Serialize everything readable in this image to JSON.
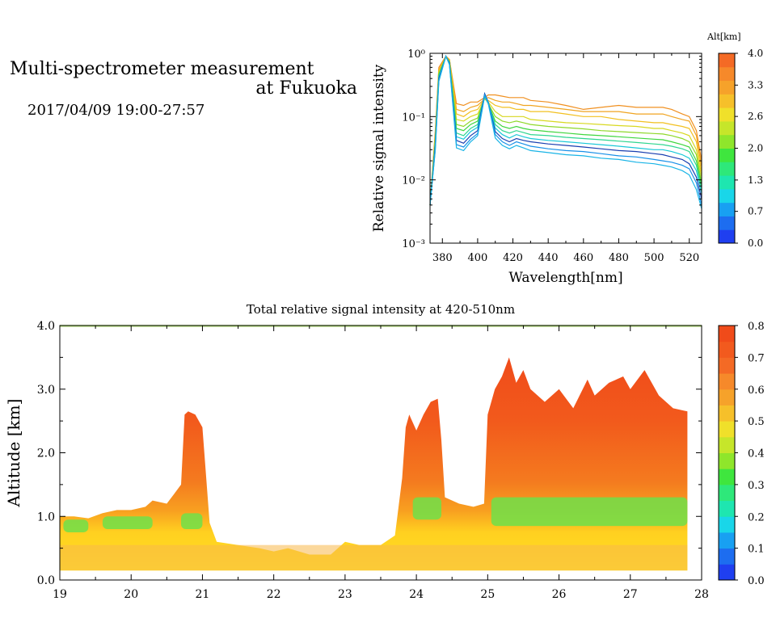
{
  "header": {
    "title_line1": "Multi-spectrometer measurement",
    "title_line2": "at Fukuoka",
    "date_range": "2017/04/09 19:00-27:57"
  },
  "chart_data": [
    {
      "type": "line",
      "xlabel": "Wavelength[nm]",
      "ylabel": "Relative signal intensity",
      "xlim": [
        373,
        527
      ],
      "ylim": [
        0.001,
        1
      ],
      "yscale": "log",
      "x_ticks": [
        380,
        400,
        420,
        440,
        460,
        480,
        500,
        520
      ],
      "y_tick_labels": [
        "10⁻³",
        "10⁻²",
        "10⁻¹",
        "10⁰"
      ],
      "y_tick_values": [
        0.001,
        0.01,
        0.1,
        1
      ],
      "colorbar": {
        "label": "Alt[km]",
        "range": [
          0,
          4
        ],
        "tick_labels": [
          "0.0",
          "0.7",
          "1.3",
          "2.0",
          "2.6",
          "3.3",
          "4.0"
        ],
        "tick_values": [
          0,
          0.67,
          1.33,
          2.0,
          2.67,
          3.33,
          4.0
        ],
        "colors": [
          "#1f3ff0",
          "#1d6df0",
          "#18a0f2",
          "#19d6e9",
          "#1ee6b0",
          "#2ee87a",
          "#3fe63e",
          "#8fe62b",
          "#c6e62a",
          "#f0e02a",
          "#f6c02a",
          "#f6a22a",
          "#f6892a",
          "#f46a25"
        ]
      },
      "x": [
        373,
        376,
        378,
        382,
        384,
        388,
        392,
        396,
        400,
        404,
        406,
        410,
        414,
        418,
        422,
        426,
        430,
        440,
        450,
        460,
        470,
        480,
        490,
        500,
        505,
        510,
        516,
        520,
        524,
        527
      ],
      "series": [
        {
          "color": "#f09020",
          "values": [
            0.004,
            0.06,
            0.6,
            0.9,
            0.8,
            0.16,
            0.15,
            0.17,
            0.17,
            0.2,
            0.22,
            0.22,
            0.21,
            0.2,
            0.2,
            0.2,
            0.18,
            0.17,
            0.15,
            0.13,
            0.14,
            0.15,
            0.14,
            0.14,
            0.14,
            0.13,
            0.11,
            0.1,
            0.06,
            0.02
          ]
        },
        {
          "color": "#f0a420",
          "values": [
            0.004,
            0.05,
            0.55,
            0.88,
            0.8,
            0.13,
            0.12,
            0.14,
            0.15,
            0.19,
            0.2,
            0.18,
            0.17,
            0.17,
            0.16,
            0.15,
            0.15,
            0.14,
            0.13,
            0.12,
            0.12,
            0.12,
            0.11,
            0.11,
            0.11,
            0.1,
            0.09,
            0.085,
            0.05,
            0.016
          ]
        },
        {
          "color": "#f2c020",
          "values": [
            0.004,
            0.05,
            0.52,
            0.88,
            0.78,
            0.11,
            0.1,
            0.12,
            0.13,
            0.19,
            0.18,
            0.15,
            0.14,
            0.14,
            0.13,
            0.13,
            0.12,
            0.12,
            0.11,
            0.1,
            0.1,
            0.09,
            0.085,
            0.08,
            0.08,
            0.075,
            0.07,
            0.065,
            0.04,
            0.013
          ]
        },
        {
          "color": "#d8d820",
          "values": [
            0.004,
            0.045,
            0.5,
            0.88,
            0.75,
            0.09,
            0.085,
            0.1,
            0.11,
            0.19,
            0.17,
            0.12,
            0.1,
            0.1,
            0.1,
            0.1,
            0.09,
            0.085,
            0.08,
            0.078,
            0.075,
            0.072,
            0.07,
            0.065,
            0.065,
            0.06,
            0.055,
            0.05,
            0.03,
            0.011
          ]
        },
        {
          "color": "#8fd82a",
          "values": [
            0.004,
            0.045,
            0.48,
            0.88,
            0.75,
            0.075,
            0.07,
            0.085,
            0.095,
            0.2,
            0.16,
            0.1,
            0.085,
            0.08,
            0.085,
            0.08,
            0.075,
            0.07,
            0.067,
            0.064,
            0.06,
            0.058,
            0.056,
            0.054,
            0.053,
            0.05,
            0.045,
            0.04,
            0.025,
            0.009
          ]
        },
        {
          "color": "#3fd63e",
          "values": [
            0.004,
            0.04,
            0.46,
            0.88,
            0.73,
            0.065,
            0.06,
            0.075,
            0.085,
            0.21,
            0.16,
            0.085,
            0.07,
            0.065,
            0.07,
            0.065,
            0.062,
            0.058,
            0.055,
            0.052,
            0.05,
            0.048,
            0.046,
            0.044,
            0.043,
            0.04,
            0.036,
            0.033,
            0.02,
            0.008
          ]
        },
        {
          "color": "#2ed690",
          "values": [
            0.004,
            0.04,
            0.44,
            0.88,
            0.72,
            0.055,
            0.05,
            0.065,
            0.075,
            0.22,
            0.16,
            0.075,
            0.06,
            0.055,
            0.06,
            0.056,
            0.052,
            0.05,
            0.047,
            0.045,
            0.043,
            0.041,
            0.039,
            0.037,
            0.036,
            0.034,
            0.031,
            0.028,
            0.017,
            0.007
          ]
        },
        {
          "color": "#19c8d8",
          "values": [
            0.004,
            0.035,
            0.42,
            0.88,
            0.7,
            0.048,
            0.044,
            0.058,
            0.068,
            0.23,
            0.17,
            0.066,
            0.052,
            0.046,
            0.052,
            0.048,
            0.045,
            0.042,
            0.04,
            0.038,
            0.036,
            0.034,
            0.032,
            0.03,
            0.03,
            0.028,
            0.025,
            0.022,
            0.014,
            0.006
          ]
        },
        {
          "color": "#1a3fb0",
          "values": [
            0.004,
            0.035,
            0.4,
            0.9,
            0.7,
            0.042,
            0.038,
            0.05,
            0.06,
            0.23,
            0.17,
            0.058,
            0.045,
            0.04,
            0.045,
            0.042,
            0.04,
            0.037,
            0.035,
            0.033,
            0.031,
            0.029,
            0.028,
            0.026,
            0.025,
            0.023,
            0.021,
            0.018,
            0.011,
            0.005
          ]
        },
        {
          "color": "#1890e8",
          "values": [
            0.004,
            0.03,
            0.38,
            0.9,
            0.68,
            0.036,
            0.033,
            0.044,
            0.054,
            0.22,
            0.17,
            0.052,
            0.04,
            0.035,
            0.04,
            0.037,
            0.034,
            0.031,
            0.029,
            0.028,
            0.026,
            0.024,
            0.023,
            0.021,
            0.02,
            0.019,
            0.017,
            0.015,
            0.009,
            0.004
          ]
        },
        {
          "color": "#19b4e6",
          "values": [
            0.004,
            0.03,
            0.36,
            0.9,
            0.66,
            0.032,
            0.029,
            0.04,
            0.05,
            0.21,
            0.16,
            0.046,
            0.035,
            0.031,
            0.035,
            0.032,
            0.029,
            0.027,
            0.025,
            0.024,
            0.022,
            0.021,
            0.019,
            0.018,
            0.017,
            0.016,
            0.014,
            0.012,
            0.007,
            0.0035
          ]
        }
      ]
    },
    {
      "type": "heatmap",
      "title": "Total relative signal intensity at 420-510nm",
      "ylabel": "Altitude [km]",
      "xlabel": "",
      "xlim": [
        19,
        28
      ],
      "ylim": [
        0,
        4
      ],
      "x_ticks": [
        19,
        20,
        21,
        22,
        23,
        24,
        25,
        26,
        27,
        28
      ],
      "y_tick_labels": [
        "0.0",
        "1.0",
        "2.0",
        "3.0",
        "4.0"
      ],
      "y_tick_values": [
        0,
        1,
        2,
        3,
        4
      ],
      "colorbar": {
        "range": [
          0,
          0.8
        ],
        "tick_labels": [
          "0.0",
          "0.1",
          "0.2",
          "0.3",
          "0.4",
          "0.5",
          "0.6",
          "0.7",
          "0.8"
        ],
        "tick_values": [
          0,
          0.1,
          0.2,
          0.3,
          0.4,
          0.5,
          0.6,
          0.7,
          0.8
        ]
      },
      "cloud_top_profile": {
        "time": [
          19.0,
          19.2,
          19.4,
          19.6,
          19.8,
          20.0,
          20.2,
          20.3,
          20.5,
          20.6,
          20.7,
          20.75,
          20.8,
          20.9,
          21.0,
          21.1,
          21.2,
          21.5,
          21.8,
          22.0,
          22.2,
          22.5,
          22.8,
          23.0,
          23.2,
          23.5,
          23.7,
          23.8,
          23.85,
          23.9,
          24.0,
          24.1,
          24.2,
          24.3,
          24.35,
          24.4,
          24.6,
          24.8,
          24.95,
          25.0,
          25.1,
          25.2,
          25.3,
          25.4,
          25.5,
          25.6,
          25.8,
          26.0,
          26.2,
          26.4,
          26.5,
          26.7,
          26.9,
          27.0,
          27.2,
          27.4,
          27.5,
          27.6,
          27.8
        ],
        "top_km": [
          1.0,
          1.0,
          0.97,
          1.05,
          1.1,
          1.1,
          1.15,
          1.25,
          1.2,
          1.35,
          1.5,
          2.6,
          2.65,
          2.6,
          2.4,
          0.9,
          0.6,
          0.55,
          0.5,
          0.45,
          0.5,
          0.4,
          0.4,
          0.6,
          0.55,
          0.55,
          0.7,
          1.6,
          2.4,
          2.6,
          2.35,
          2.6,
          2.8,
          2.85,
          2.2,
          1.3,
          1.2,
          1.15,
          1.2,
          2.6,
          3.0,
          3.2,
          3.5,
          3.1,
          3.3,
          3.0,
          2.8,
          3.0,
          2.7,
          3.15,
          2.9,
          3.1,
          3.2,
          3.0,
          3.3,
          2.9,
          2.8,
          2.7,
          2.65
        ],
        "base_km": 0.15
      },
      "aerosol_layer": {
        "name": "high intensity layer",
        "altitude_km": [
          0.8,
          1.3
        ]
      }
    }
  ]
}
